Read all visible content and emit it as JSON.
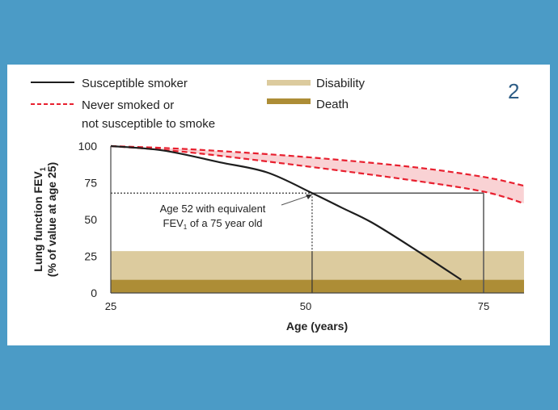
{
  "figure_number": "2",
  "colors": {
    "background": "#4b9bc6",
    "smoker": "#1e1e1e",
    "never_smoked": "#e8202f",
    "never_smoked_fill": "#f9d2d4",
    "disability": "#dccb9e",
    "death": "#ad8d36",
    "figure_number": "#2d5d86"
  },
  "chart_data": {
    "type": "line",
    "xlabel": "Age (years)",
    "ylabel_line1": "Lung function FEV",
    "ylabel_sub": "1",
    "ylabel_line2": "(% of value at age 25)",
    "xlim": [
      25,
      80
    ],
    "ylim": [
      0,
      100
    ],
    "xticks": [
      25,
      50,
      75
    ],
    "yticks": [
      0,
      25,
      50,
      75,
      100
    ],
    "grid": false,
    "legend_position": "top",
    "legend": [
      {
        "label": "Susceptible smoker",
        "style": "solid-line"
      },
      {
        "label": "Never smoked or",
        "label2": "not susceptible to smoke",
        "style": "dashed-line"
      },
      {
        "label": "Disability",
        "style": "band"
      },
      {
        "label": "Death",
        "style": "band"
      }
    ],
    "series": [
      {
        "name": "Susceptible smoker",
        "x": [
          25,
          32,
          39.6,
          46,
          52,
          56,
          60,
          65.7,
          72
        ],
        "y": [
          100,
          97,
          89,
          82,
          68,
          58,
          48,
          30,
          9
        ]
      },
      {
        "name": "Never smoked or not susceptible to smoke (upper)",
        "x": [
          25,
          35,
          50,
          65,
          75,
          80.4
        ],
        "y": [
          100,
          98,
          93,
          86,
          79,
          73
        ]
      },
      {
        "name": "Never smoked or not susceptible to smoke (lower)",
        "x": [
          25,
          35,
          50,
          65,
          75,
          80.4
        ],
        "y": [
          100,
          96,
          87,
          77,
          69,
          61
        ]
      }
    ],
    "bands": [
      {
        "name": "Disability",
        "y0": 9,
        "y1": 28.5
      },
      {
        "name": "Death",
        "y0": 0,
        "y1": 9
      }
    ],
    "annotation": {
      "line1": "Age 52 with equivalent",
      "line2_pre": "FEV",
      "line2_sub": "1",
      "line2_post": " of a 75 year old",
      "age": 52,
      "equivalent_age": 75,
      "fev1": 68
    }
  }
}
